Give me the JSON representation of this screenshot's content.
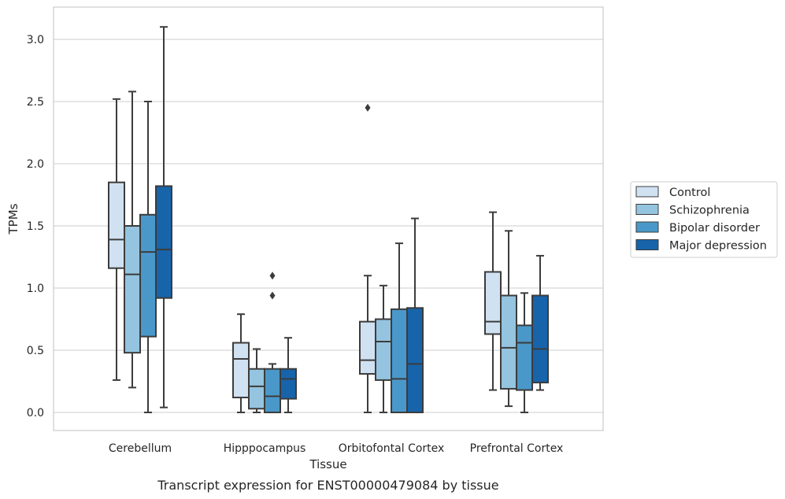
{
  "caption": "Transcript expression for ENST00000479084 by tissue",
  "chart_data": {
    "type": "boxplot",
    "title": "",
    "xlabel": "Tissue",
    "ylabel": "TPMs",
    "ylim": [
      -0.15,
      3.25
    ],
    "yticks": [
      "0.0",
      "0.5",
      "1.0",
      "1.5",
      "2.0",
      "2.5",
      "3.0"
    ],
    "ytick_values": [
      0,
      0.5,
      1.0,
      1.5,
      2.0,
      2.5,
      3.0
    ],
    "grid": true,
    "legend_position": "right",
    "categories": [
      "Cerebellum",
      "Hipppocampus",
      "Orbitofontal Cortex",
      "Prefrontal Cortex"
    ],
    "series": [
      {
        "name": "Control",
        "color": "#d0e1f2",
        "boxes": [
          {
            "whisker_low": 0.26,
            "q1": 1.16,
            "median": 1.39,
            "q3": 1.85,
            "whisker_high": 2.52,
            "outliers": []
          },
          {
            "whisker_low": 0.0,
            "q1": 0.12,
            "median": 0.43,
            "q3": 0.56,
            "whisker_high": 0.79,
            "outliers": []
          },
          {
            "whisker_low": 0.0,
            "q1": 0.31,
            "median": 0.42,
            "q3": 0.73,
            "whisker_high": 1.1,
            "outliers": [
              2.45
            ]
          },
          {
            "whisker_low": 0.18,
            "q1": 0.63,
            "median": 0.73,
            "q3": 1.13,
            "whisker_high": 1.61,
            "outliers": []
          }
        ]
      },
      {
        "name": "Schizophrenia",
        "color": "#94c4df",
        "boxes": [
          {
            "whisker_low": 0.2,
            "q1": 0.48,
            "median": 1.11,
            "q3": 1.5,
            "whisker_high": 2.58,
            "outliers": []
          },
          {
            "whisker_low": 0.0,
            "q1": 0.03,
            "median": 0.21,
            "q3": 0.35,
            "whisker_high": 0.51,
            "outliers": []
          },
          {
            "whisker_low": 0.0,
            "q1": 0.26,
            "median": 0.57,
            "q3": 0.75,
            "whisker_high": 1.02,
            "outliers": []
          },
          {
            "whisker_low": 0.05,
            "q1": 0.19,
            "median": 0.52,
            "q3": 0.94,
            "whisker_high": 1.46,
            "outliers": []
          }
        ]
      },
      {
        "name": "Bipolar disorder",
        "color": "#4a98c9",
        "boxes": [
          {
            "whisker_low": 0.0,
            "q1": 0.61,
            "median": 1.29,
            "q3": 1.59,
            "whisker_high": 2.5,
            "outliers": []
          },
          {
            "whisker_low": 0.0,
            "q1": 0.0,
            "median": 0.13,
            "q3": 0.35,
            "whisker_high": 0.39,
            "outliers": [
              0.94,
              1.1
            ]
          },
          {
            "whisker_low": 0.0,
            "q1": 0.0,
            "median": 0.27,
            "q3": 0.83,
            "whisker_high": 1.36,
            "outliers": []
          },
          {
            "whisker_low": 0.0,
            "q1": 0.18,
            "median": 0.56,
            "q3": 0.7,
            "whisker_high": 0.96,
            "outliers": []
          }
        ]
      },
      {
        "name": "Major depression",
        "color": "#1764ab",
        "boxes": [
          {
            "whisker_low": 0.04,
            "q1": 0.92,
            "median": 1.31,
            "q3": 1.82,
            "whisker_high": 3.1,
            "outliers": []
          },
          {
            "whisker_low": 0.0,
            "q1": 0.11,
            "median": 0.27,
            "q3": 0.35,
            "whisker_high": 0.6,
            "outliers": []
          },
          {
            "whisker_low": 0.0,
            "q1": 0.0,
            "median": 0.39,
            "q3": 0.84,
            "whisker_high": 1.56,
            "outliers": []
          },
          {
            "whisker_low": 0.18,
            "q1": 0.24,
            "median": 0.51,
            "q3": 0.94,
            "whisker_high": 1.26,
            "outliers": []
          }
        ]
      }
    ]
  }
}
